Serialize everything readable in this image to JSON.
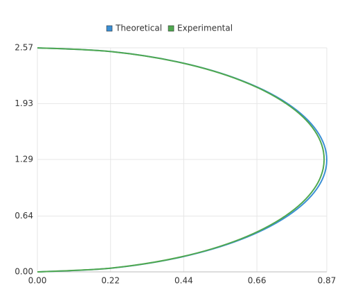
{
  "chart_data": {
    "type": "line",
    "series": [
      {
        "name": "Theoretical",
        "color": "#3a8fd4",
        "x": [
          0,
          0.225,
          0.435,
          0.615,
          0.753,
          0.84,
          0.87,
          0.84,
          0.753,
          0.615,
          0.435,
          0.225,
          0
        ],
        "values": [
          0,
          0.044,
          0.172,
          0.376,
          0.643,
          0.952,
          1.285,
          1.618,
          1.928,
          2.194,
          2.398,
          2.526,
          2.57
        ]
      },
      {
        "name": "Experimental",
        "color": "#4fa84f",
        "x": [
          0,
          0.223,
          0.432,
          0.61,
          0.746,
          0.832,
          0.862,
          0.834,
          0.749,
          0.613,
          0.434,
          0.224,
          0
        ],
        "values": [
          0,
          0.044,
          0.172,
          0.376,
          0.643,
          0.952,
          1.285,
          1.618,
          1.928,
          2.194,
          2.398,
          2.526,
          2.57
        ]
      }
    ],
    "xlim": [
      0,
      0.87
    ],
    "xticks": [
      {
        "value": 0,
        "label": "0.00"
      },
      {
        "value": 0.22,
        "label": "0.22"
      },
      {
        "value": 0.44,
        "label": "0.44"
      },
      {
        "value": 0.66,
        "label": "0.66"
      },
      {
        "value": 0.87,
        "label": "0.87"
      }
    ],
    "ylim": [
      0,
      2.57
    ],
    "yticks": [
      {
        "value": 0,
        "label": "0.00"
      },
      {
        "value": 0.64,
        "label": "0.64"
      },
      {
        "value": 1.29,
        "label": "1.29"
      },
      {
        "value": 1.93,
        "label": "1.93"
      },
      {
        "value": 2.57,
        "label": "2.57"
      }
    ],
    "grid": true,
    "legend": "top"
  }
}
